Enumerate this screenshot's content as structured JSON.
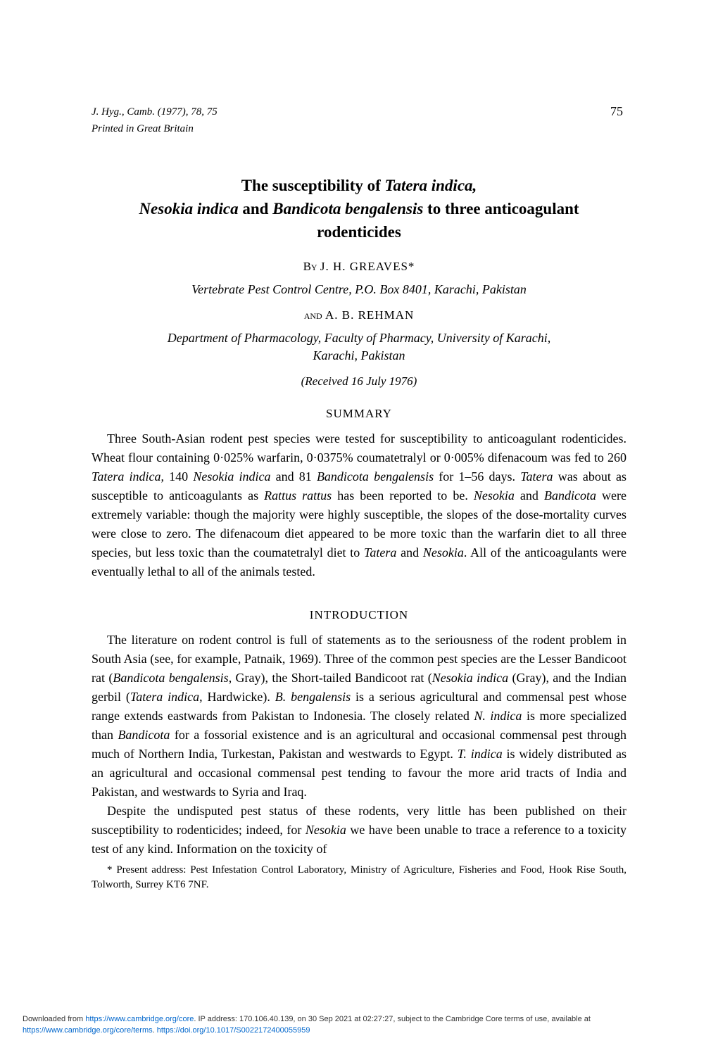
{
  "journal_header": "J. Hyg., Camb. (1977), 78, 75",
  "printed_in": "Printed in Great Britain",
  "page_number": "75",
  "title_html": "The susceptibility of <span class='italic'>Tatera indica,</span><br><span class='italic'>Nesokia indica</span> and <span class='italic'>Bandicota bengalensis</span> to three anticoagulant rodenticides",
  "by_label": "By",
  "author1": "J. H. GREAVES*",
  "affiliation1": "Vertebrate Pest Control Centre, P.O. Box 8401, Karachi, Pakistan",
  "and_label": "and",
  "author2": "A. B. REHMAN",
  "affiliation2_html": "Department of Pharmacology, Faculty of Pharmacy, University of Karachi,<br>Karachi, Pakistan",
  "received": "(Received 16 July 1976)",
  "summary_heading": "SUMMARY",
  "summary_html": "Three South-Asian rodent pest species were tested for susceptibility to anticoagulant rodenticides. Wheat flour containing 0·025% warfarin, 0·0375% coumatetralyl or 0·005% difenacoum was fed to 260 <span class='italic'>Tatera indica</span>, 140 <span class='italic'>Nesokia indica</span> and 81 <span class='italic'>Bandicota bengalensis</span> for 1–56 days. <span class='italic'>Tatera</span> was about as susceptible to anticoagulants as <span class='italic'>Rattus rattus</span> has been reported to be. <span class='italic'>Nesokia</span> and <span class='italic'>Bandicota</span> were extremely variable: though the majority were highly susceptible, the slopes of the dose-mortality curves were close to zero. The difenacoum diet appeared to be more toxic than the warfarin diet to all three species, but less toxic than the coumatetralyl diet to <span class='italic'>Tatera</span> and <span class='italic'>Nesokia</span>. All of the anticoagulants were eventually lethal to all of the animals tested.",
  "intro_heading": "INTRODUCTION",
  "intro_p1_html": "The literature on rodent control is full of statements as to the seriousness of the rodent problem in South Asia (see, for example, Patnaik, 1969). Three of the common pest species are the Lesser Bandicoot rat (<span class='italic'>Bandicota bengalensis</span>, Gray), the Short-tailed Bandicoot rat (<span class='italic'>Nesokia indica</span> (Gray), and the Indian gerbil (<span class='italic'>Tatera indica</span>, Hardwicke). <span class='italic'>B. bengalensis</span> is a serious agricultural and commensal pest whose range extends eastwards from Pakistan to Indonesia. The closely related <span class='italic'>N. indica</span> is more specialized than <span class='italic'>Bandicota</span> for a fossorial existence and is an agricultural and occasional commensal pest through much of Northern India, Turkestan, Pakistan and westwards to Egypt. <span class='italic'>T. indica</span> is widely distributed as an agricultural and occasional commensal pest tending to favour the more arid tracts of India and Pakistan, and westwards to Syria and Iraq.",
  "intro_p2_html": "Despite the undisputed pest status of these rodents, very little has been published on their susceptibility to rodenticides; indeed, for <span class='italic'>Nesokia</span> we have been unable to trace a reference to a toxicity test of any kind. Information on the toxicity of",
  "footnote_html": "* Present address: Pest Infestation Control Laboratory, Ministry of Agriculture, Fisheries and Food, Hook Rise South, Tolworth, Surrey KT6 7NF.",
  "footer": {
    "prefix": "Downloaded from ",
    "link1": "https://www.cambridge.org/core",
    "middle": ". IP address: 170.106.40.139, on 30 Sep 2021 at 02:27:27, subject to the Cambridge Core terms of use, available at ",
    "link2": "https://www.cambridge.org/core/terms",
    "sep": ". ",
    "link3": "https://doi.org/10.1017/S0022172400055959"
  }
}
